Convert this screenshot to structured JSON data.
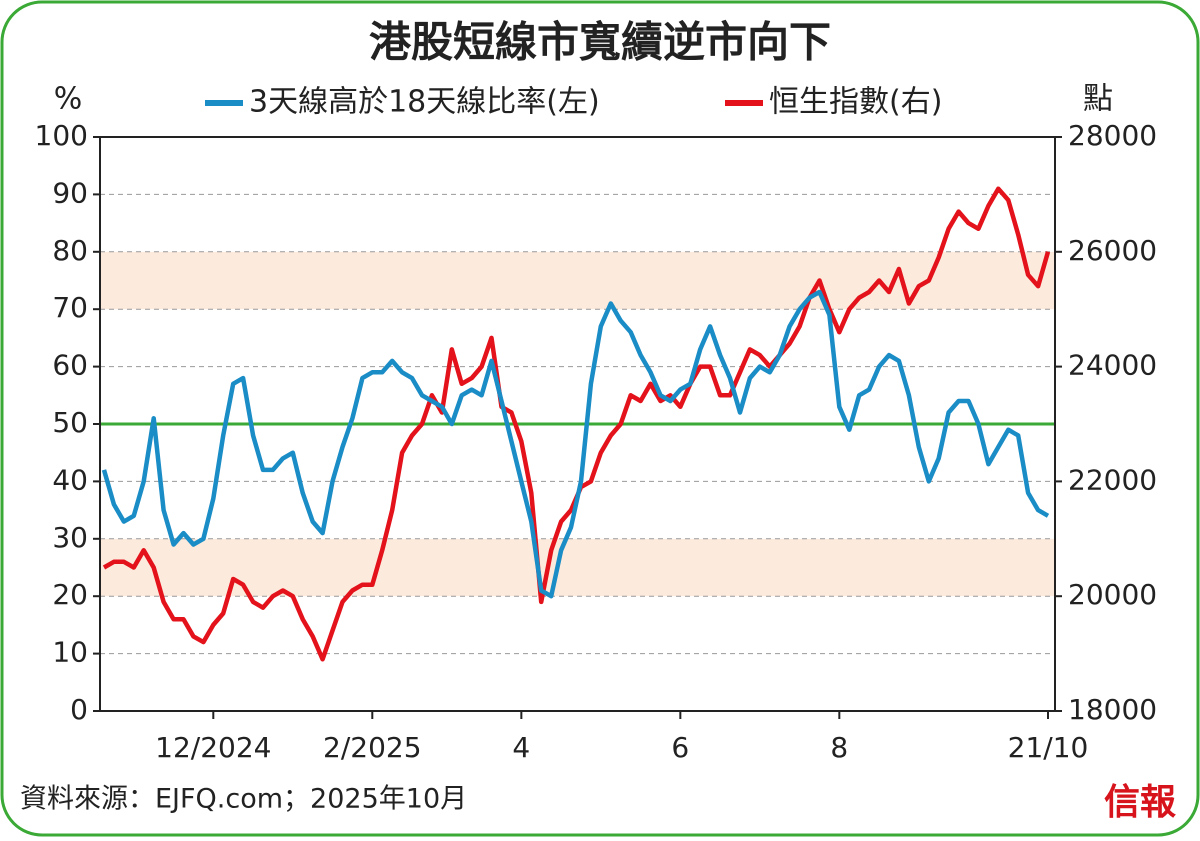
{
  "chart_data": {
    "type": "line",
    "title": "港股短線市寬續逆市向下",
    "ylabel": "%",
    "y2label": "點",
    "source": "資料來源：EJFQ.com；2025年10月",
    "logo": "信報",
    "legend": "top",
    "grid": true,
    "ylim": [
      0,
      100
    ],
    "yticks": [
      0,
      10,
      20,
      30,
      40,
      50,
      60,
      70,
      80,
      90,
      100
    ],
    "y2lim": [
      18000,
      28000
    ],
    "y2ticks": [
      18000,
      20000,
      22000,
      24000,
      26000,
      28000
    ],
    "bands": [
      [
        20,
        30
      ],
      [
        70,
        80
      ]
    ],
    "band_color": "#fcebdc",
    "reference_line": 50,
    "reference_color": "#3aa935",
    "categories": [
      null,
      null,
      null,
      null,
      null,
      null,
      null,
      null,
      null,
      null,
      null,
      "12/2024",
      null,
      null,
      null,
      null,
      null,
      null,
      null,
      null,
      null,
      null,
      null,
      null,
      null,
      null,
      null,
      "2/2025",
      null,
      null,
      null,
      null,
      null,
      null,
      null,
      null,
      null,
      null,
      null,
      null,
      null,
      null,
      "4",
      null,
      null,
      null,
      null,
      null,
      null,
      null,
      null,
      null,
      null,
      null,
      null,
      null,
      null,
      null,
      "6",
      null,
      null,
      null,
      null,
      null,
      null,
      null,
      null,
      null,
      null,
      null,
      null,
      null,
      null,
      null,
      "8",
      null,
      null,
      null,
      null,
      null,
      null,
      null,
      null,
      null,
      null,
      null,
      null,
      null,
      null,
      null,
      null,
      null,
      null,
      null,
      null,
      "21/10"
    ],
    "series": [
      {
        "name": "3天線高於18天線比率(左)",
        "color": "#1a8cc6",
        "axis": "y",
        "values": [
          42,
          36,
          33,
          34,
          40,
          51,
          35,
          29,
          31,
          29,
          30,
          37,
          48,
          57,
          58,
          48,
          42,
          42,
          44,
          45,
          38,
          33,
          31,
          40,
          46,
          51,
          58,
          59,
          59,
          61,
          59,
          58,
          55,
          54,
          53,
          50,
          55,
          56,
          55,
          61,
          54,
          47,
          40,
          33,
          21,
          20,
          28,
          32,
          40,
          57,
          67,
          71,
          68,
          66,
          62,
          59,
          55,
          54,
          56,
          57,
          63,
          67,
          62,
          58,
          52,
          58,
          60,
          59,
          62,
          67,
          70,
          72,
          73,
          69,
          53,
          49,
          55,
          56,
          60,
          62,
          61,
          55,
          46,
          40,
          44,
          52,
          54,
          54,
          50,
          43,
          46,
          49,
          48,
          38,
          35,
          34
        ]
      },
      {
        "name": "恒生指數(右)",
        "color": "#e3121b",
        "axis": "y2",
        "values": [
          20500,
          20600,
          20600,
          20500,
          20800,
          20500,
          19900,
          19600,
          19600,
          19300,
          19200,
          19500,
          19700,
          20300,
          20200,
          19900,
          19800,
          20000,
          20100,
          20000,
          19600,
          19300,
          18900,
          19400,
          19900,
          20100,
          20200,
          20200,
          20800,
          21500,
          22500,
          22800,
          23000,
          23500,
          23200,
          24300,
          23700,
          23800,
          24000,
          24500,
          23300,
          23200,
          22700,
          21800,
          19900,
          20800,
          21300,
          21500,
          21900,
          22000,
          22500,
          22800,
          23000,
          23500,
          23400,
          23700,
          23400,
          23500,
          23300,
          23700,
          24000,
          24000,
          23500,
          23500,
          23900,
          24300,
          24200,
          24000,
          24200,
          24400,
          24700,
          25200,
          25500,
          25000,
          24600,
          25000,
          25200,
          25300,
          25500,
          25300,
          25700,
          25100,
          25400,
          25500,
          25900,
          26400,
          26700,
          26500,
          26400,
          26800,
          27100,
          26900,
          26300,
          25600,
          25400,
          26000
        ]
      }
    ]
  }
}
